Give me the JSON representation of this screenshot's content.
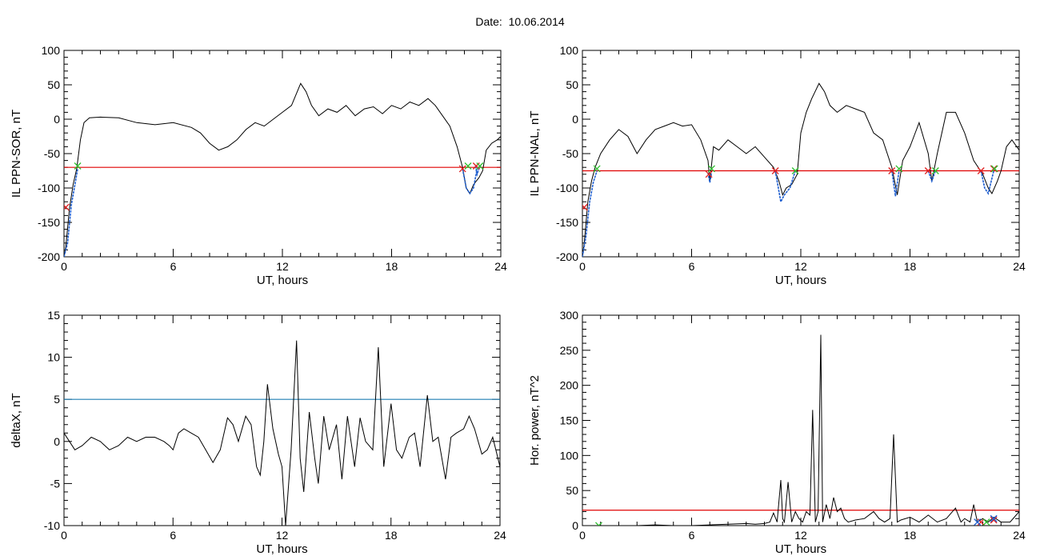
{
  "header": {
    "date_label": "Date:",
    "date_value": "10.06.2014"
  },
  "colors": {
    "trace": "#000000",
    "threshold_red": "#e00000",
    "threshold_blue": "#1f7fb4",
    "event_segment": "#1f5fd0",
    "marker_start": "#e02020",
    "marker_end": "#30c030"
  },
  "chart_data": [
    {
      "type": "line",
      "id": "ppn-sor",
      "xlabel": "UT, hours",
      "ylabel": "IL PPN-SOR, nT",
      "xlim": [
        0,
        24
      ],
      "ylim": [
        -200,
        100
      ],
      "xticks": [
        0,
        6,
        12,
        18,
        24
      ],
      "yticks": [
        -200,
        -150,
        -100,
        -50,
        0,
        50,
        100
      ],
      "threshold": {
        "value": -70,
        "color": "red"
      },
      "series": [
        {
          "x": [
            0,
            0.1,
            0.3,
            0.5,
            0.7,
            0.9,
            1.1,
            1.4,
            2.0,
            3.0,
            4.0,
            5.0,
            6.0,
            7.0,
            7.5,
            8.0,
            8.5,
            9.0,
            9.5,
            10.0,
            10.5,
            11.0,
            11.5,
            12.0,
            12.5,
            13.0,
            13.3,
            13.6,
            14.0,
            14.5,
            15.0,
            15.5,
            16.0,
            16.5,
            17.0,
            17.5,
            18.0,
            18.5,
            19.0,
            19.5,
            20.0,
            20.4,
            20.8,
            21.2,
            21.6,
            21.9,
            22.1,
            22.3,
            22.5,
            22.8,
            23.0,
            23.2,
            23.5,
            23.8,
            24.0
          ],
          "y": [
            -200,
            -185,
            -130,
            -95,
            -72,
            -30,
            -5,
            2,
            3,
            2,
            -5,
            -8,
            -5,
            -12,
            -20,
            -35,
            -45,
            -40,
            -30,
            -15,
            -5,
            -10,
            0,
            10,
            20,
            52,
            40,
            20,
            5,
            15,
            10,
            20,
            5,
            15,
            18,
            8,
            20,
            15,
            25,
            20,
            30,
            20,
            5,
            -10,
            -40,
            -70,
            -100,
            -108,
            -95,
            -85,
            -75,
            -45,
            -35,
            -30,
            -25
          ]
        }
      ],
      "events": [
        {
          "x": [
            0.0,
            0.2,
            0.4,
            0.6,
            0.75
          ],
          "y": [
            -200,
            -180,
            -125,
            -95,
            -72
          ]
        },
        {
          "x": [
            21.9,
            22.1,
            22.3,
            22.5,
            22.7
          ],
          "y": [
            -72,
            -100,
            -108,
            -100,
            -72
          ]
        },
        {
          "x": [
            22.6,
            22.7,
            22.8,
            22.9
          ],
          "y": [
            -68,
            -80,
            -72,
            -68
          ]
        }
      ],
      "markers_start": [
        {
          "x": 0.1,
          "y": -128
        },
        {
          "x": 21.9,
          "y": -72
        },
        {
          "x": 22.65,
          "y": -68
        }
      ],
      "markers_end": [
        {
          "x": 0.75,
          "y": -68
        },
        {
          "x": 22.2,
          "y": -68
        },
        {
          "x": 22.85,
          "y": -68
        }
      ]
    },
    {
      "type": "line",
      "id": "ppn-nal",
      "xlabel": "UT, hours",
      "ylabel": "IL PPN-NAL, nT",
      "xlim": [
        0,
        24
      ],
      "ylim": [
        -200,
        100
      ],
      "xticks": [
        0,
        6,
        12,
        18,
        24
      ],
      "yticks": [
        -200,
        -150,
        -100,
        -50,
        0,
        50,
        100
      ],
      "threshold": {
        "value": -75,
        "color": "red"
      },
      "series": [
        {
          "x": [
            0,
            0.1,
            0.3,
            0.5,
            0.7,
            1.0,
            1.5,
            2.0,
            2.5,
            3.0,
            3.5,
            4.0,
            4.5,
            5.0,
            5.5,
            6.0,
            6.5,
            6.9,
            7.0,
            7.2,
            7.5,
            8.0,
            8.5,
            9.0,
            9.5,
            10.0,
            10.5,
            10.8,
            11.0,
            11.2,
            11.5,
            11.8,
            12.0,
            12.3,
            12.6,
            13.0,
            13.3,
            13.6,
            14.0,
            14.5,
            15.0,
            15.5,
            16.0,
            16.5,
            17.0,
            17.3,
            17.6,
            18.0,
            18.5,
            19.0,
            19.2,
            19.5,
            20.0,
            20.5,
            21.0,
            21.5,
            22.0,
            22.3,
            22.5,
            22.8,
            23.0,
            23.3,
            23.6,
            24.0
          ],
          "y": [
            -200,
            -180,
            -120,
            -90,
            -70,
            -50,
            -30,
            -15,
            -25,
            -50,
            -30,
            -15,
            -10,
            -5,
            -10,
            -8,
            -30,
            -60,
            -90,
            -40,
            -45,
            -30,
            -40,
            -50,
            -40,
            -55,
            -70,
            -90,
            -110,
            -100,
            -95,
            -80,
            -20,
            10,
            30,
            52,
            40,
            20,
            10,
            20,
            15,
            10,
            -20,
            -30,
            -70,
            -110,
            -60,
            -40,
            -5,
            -50,
            -90,
            -50,
            10,
            10,
            -20,
            -60,
            -80,
            -100,
            -108,
            -90,
            -75,
            -40,
            -30,
            -45
          ]
        }
      ],
      "events": [
        {
          "x": [
            0.0,
            0.2,
            0.4,
            0.6,
            0.8
          ],
          "y": [
            -200,
            -170,
            -120,
            -92,
            -75
          ]
        },
        {
          "x": [
            6.9,
            7.0,
            7.1
          ],
          "y": [
            -78,
            -92,
            -78
          ]
        },
        {
          "x": [
            10.6,
            10.9,
            11.1,
            11.4,
            11.7
          ],
          "y": [
            -75,
            -120,
            -110,
            -100,
            -75
          ]
        },
        {
          "x": [
            17.0,
            17.2,
            17.4
          ],
          "y": [
            -75,
            -112,
            -75
          ]
        },
        {
          "x": [
            19.0,
            19.2,
            19.4
          ],
          "y": [
            -75,
            -90,
            -75
          ]
        },
        {
          "x": [
            21.9,
            22.1,
            22.3,
            22.6
          ],
          "y": [
            -75,
            -100,
            -108,
            -75
          ]
        }
      ],
      "markers_start": [
        {
          "x": 0.1,
          "y": -128
        },
        {
          "x": 6.95,
          "y": -80
        },
        {
          "x": 10.6,
          "y": -75
        },
        {
          "x": 17.0,
          "y": -75
        },
        {
          "x": 19.0,
          "y": -75
        },
        {
          "x": 21.9,
          "y": -75
        },
        {
          "x": 22.6,
          "y": -72
        }
      ],
      "markers_end": [
        {
          "x": 0.8,
          "y": -72
        },
        {
          "x": 7.1,
          "y": -72
        },
        {
          "x": 11.7,
          "y": -75
        },
        {
          "x": 17.4,
          "y": -72
        },
        {
          "x": 19.4,
          "y": -75
        },
        {
          "x": 22.65,
          "y": -72
        }
      ]
    },
    {
      "type": "line",
      "id": "deltax",
      "xlabel": "UT, hours",
      "ylabel": "deltaX, nT",
      "xlim": [
        0,
        24
      ],
      "ylim": [
        -10,
        15
      ],
      "xticks": [
        0,
        6,
        12,
        18,
        24
      ],
      "yticks": [
        -10,
        -5,
        0,
        5,
        10,
        15
      ],
      "threshold": {
        "value": 5,
        "color": "blue"
      },
      "series": [
        {
          "x": [
            0,
            0.3,
            0.6,
            1.0,
            1.5,
            2.0,
            2.5,
            3.0,
            3.5,
            4.0,
            4.5,
            5.0,
            5.5,
            5.8,
            6.0,
            6.3,
            6.6,
            7.0,
            7.4,
            7.8,
            8.2,
            8.6,
            9.0,
            9.3,
            9.6,
            10.0,
            10.3,
            10.6,
            10.8,
            11.0,
            11.2,
            11.5,
            11.8,
            12.0,
            12.2,
            12.5,
            12.8,
            13.0,
            13.2,
            13.5,
            13.8,
            14.0,
            14.3,
            14.6,
            15.0,
            15.3,
            15.6,
            16.0,
            16.3,
            16.6,
            17.0,
            17.3,
            17.6,
            18.0,
            18.3,
            18.6,
            19.0,
            19.3,
            19.6,
            20.0,
            20.3,
            20.6,
            21.0,
            21.3,
            21.6,
            22.0,
            22.3,
            22.6,
            23.0,
            23.3,
            23.6,
            24.0
          ],
          "y": [
            1,
            0,
            -1,
            -0.5,
            0.5,
            0,
            -1,
            -0.5,
            0.5,
            0,
            0.5,
            0.5,
            0,
            -0.5,
            -1,
            1,
            1.5,
            1,
            0.5,
            -1,
            -2.5,
            -1,
            2.8,
            2,
            0,
            3,
            2,
            -3,
            -4,
            0,
            6.8,
            1.5,
            -1.5,
            -3,
            -10,
            -1,
            12,
            -2,
            -6,
            3.5,
            -2,
            -5,
            3,
            -1,
            2,
            -4.5,
            3,
            -3,
            2.8,
            0,
            -1,
            11.2,
            -3,
            4.5,
            -1,
            -2,
            0.5,
            1,
            -3,
            5.5,
            0,
            0.5,
            -4.5,
            0.5,
            1,
            1.5,
            3,
            1.5,
            -1.5,
            -1,
            0.5,
            -3
          ]
        }
      ]
    },
    {
      "type": "line",
      "id": "hor-power",
      "xlabel": "UT, hours",
      "ylabel": "Hor. power, nT^2",
      "xlim": [
        0,
        24
      ],
      "ylim": [
        0,
        300
      ],
      "xticks": [
        0,
        6,
        12,
        18,
        24
      ],
      "yticks": [
        0,
        50,
        100,
        150,
        200,
        250,
        300
      ],
      "threshold": {
        "value": 22,
        "color": "red"
      },
      "series": [
        {
          "x": [
            0,
            0.5,
            1.0,
            1.5,
            2.0,
            3.0,
            4.0,
            5.0,
            6.0,
            7.0,
            8.0,
            9.0,
            9.5,
            10.0,
            10.3,
            10.5,
            10.7,
            10.9,
            11.0,
            11.1,
            11.3,
            11.5,
            11.7,
            11.9,
            12.1,
            12.3,
            12.5,
            12.65,
            12.8,
            12.95,
            13.1,
            13.2,
            13.4,
            13.6,
            13.8,
            14.0,
            14.2,
            14.4,
            14.6,
            15.0,
            15.5,
            16.0,
            16.3,
            16.6,
            16.9,
            17.1,
            17.3,
            17.5,
            18.0,
            18.5,
            19.0,
            19.5,
            20.0,
            20.5,
            20.8,
            21.0,
            21.3,
            21.5,
            21.7,
            22.0,
            22.3,
            22.6,
            23.0,
            23.5,
            24.0
          ],
          "y": [
            0,
            0,
            -1,
            0,
            0,
            0,
            1,
            0,
            0,
            1,
            2,
            3,
            2,
            3,
            5,
            18,
            5,
            65,
            10,
            5,
            62,
            5,
            20,
            10,
            5,
            20,
            15,
            165,
            5,
            20,
            272,
            5,
            30,
            10,
            40,
            20,
            25,
            10,
            5,
            8,
            10,
            20,
            10,
            5,
            10,
            130,
            5,
            8,
            12,
            5,
            15,
            5,
            10,
            25,
            5,
            10,
            5,
            30,
            5,
            10,
            5,
            12,
            5,
            5,
            20
          ]
        }
      ],
      "markers_start": [
        {
          "x": 21.9,
          "y": 5
        },
        {
          "x": 22.6,
          "y": 8
        }
      ],
      "markers_end": [
        {
          "x": 0.9,
          "y": 0
        },
        {
          "x": 22.2,
          "y": 5
        }
      ],
      "markers_blue": [
        {
          "x": 21.7,
          "y": 5
        },
        {
          "x": 22.6,
          "y": 10
        }
      ]
    }
  ]
}
